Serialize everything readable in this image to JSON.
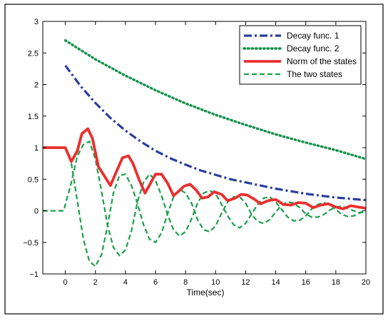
{
  "chart_data": {
    "type": "line",
    "title": "",
    "xlabel": "Time(sec)",
    "ylabel": "",
    "xlim": [
      -1.5,
      20
    ],
    "ylim": [
      -1,
      3
    ],
    "x_ticks": [
      "0",
      "2",
      "4",
      "6",
      "8",
      "10",
      "12",
      "14",
      "16",
      "18",
      "20"
    ],
    "y_ticks": [
      "−1",
      "−0.5",
      "0",
      "0.5",
      "1",
      "1.5",
      "2",
      "2.5",
      "3"
    ],
    "grid": false,
    "legend_position": "top-right",
    "series": [
      {
        "name": "Decay func. 1",
        "color": "#2b3d9e",
        "style": "dashdot",
        "x": [
          0,
          1,
          2,
          3,
          4,
          5,
          6,
          7,
          8,
          9,
          10,
          11,
          12,
          13,
          14,
          15,
          16,
          17,
          18,
          19,
          20
        ],
        "y": [
          2.3,
          1.98,
          1.71,
          1.47,
          1.27,
          1.1,
          0.95,
          0.83,
          0.73,
          0.64,
          0.57,
          0.5,
          0.45,
          0.4,
          0.35,
          0.31,
          0.27,
          0.24,
          0.21,
          0.19,
          0.17
        ]
      },
      {
        "name": "Decay func. 2",
        "color": "#13914a",
        "style": "dotted",
        "x": [
          0,
          2,
          4,
          6,
          8,
          10,
          12,
          14,
          16,
          18,
          20
        ],
        "y": [
          2.7,
          2.4,
          2.14,
          1.91,
          1.7,
          1.52,
          1.36,
          1.21,
          1.08,
          0.96,
          0.82
        ]
      },
      {
        "name": "Norm of the states",
        "color": "#e8302f",
        "style": "solid",
        "x": [
          -1.5,
          0,
          0.4,
          0.8,
          1.1,
          1.5,
          1.8,
          2.2,
          2.6,
          3.0,
          3.4,
          3.8,
          4.2,
          4.5,
          4.9,
          5.3,
          5.7,
          6.0,
          6.4,
          6.8,
          7.2,
          7.5,
          7.9,
          8.3,
          8.7,
          9.1,
          9.5,
          9.9,
          10.4,
          10.8,
          11.3,
          11.7,
          12.1,
          12.6,
          13.0,
          13.5,
          14.0,
          14.5,
          15.0,
          15.5,
          16.0,
          16.5,
          17.0,
          17.5,
          18.0,
          18.5,
          19.0,
          19.5,
          20.0
        ],
        "y": [
          1.0,
          1.0,
          0.78,
          0.95,
          1.22,
          1.3,
          1.15,
          0.7,
          0.55,
          0.4,
          0.62,
          0.84,
          0.87,
          0.75,
          0.5,
          0.28,
          0.45,
          0.58,
          0.58,
          0.44,
          0.24,
          0.3,
          0.39,
          0.42,
          0.33,
          0.2,
          0.22,
          0.3,
          0.26,
          0.16,
          0.2,
          0.26,
          0.25,
          0.18,
          0.11,
          0.16,
          0.18,
          0.1,
          0.09,
          0.13,
          0.12,
          0.05,
          0.09,
          0.11,
          0.06,
          0.03,
          0.08,
          0.06,
          0.04
        ]
      },
      {
        "name": "The two states",
        "color": "#1aa04b",
        "style": "dashed",
        "x": [
          -1.5,
          -0.1,
          0,
          0.4,
          0.8,
          1.2,
          1.6,
          2.0,
          2.4,
          2.8,
          3.2,
          3.6,
          4.0,
          4.4,
          4.8,
          5.2,
          5.6,
          6.0,
          6.4,
          6.8,
          7.2,
          7.6,
          8.0,
          8.4,
          8.8,
          9.2,
          9.6,
          10.0,
          10.4,
          10.8,
          11.2,
          11.6,
          12.0,
          12.4,
          12.8,
          13.2,
          13.6,
          14.0,
          14.4,
          14.8,
          15.2,
          15.6,
          16.0,
          16.4,
          16.8,
          17.2,
          17.6,
          18.0,
          18.4,
          18.8,
          19.2,
          19.6,
          20.0
        ],
        "y": [
          0,
          0,
          0.1,
          0.45,
          0.87,
          1.05,
          1.1,
          0.82,
          0.32,
          -0.22,
          -0.58,
          -0.71,
          -0.62,
          -0.32,
          0.14,
          0.45,
          0.58,
          0.48,
          0.24,
          -0.06,
          -0.3,
          -0.4,
          -0.33,
          -0.13,
          0.12,
          0.28,
          0.32,
          0.27,
          0.1,
          -0.08,
          -0.22,
          -0.27,
          -0.2,
          -0.05,
          0.1,
          0.2,
          0.22,
          0.14,
          0.02,
          -0.1,
          -0.16,
          -0.15,
          -0.08,
          0.03,
          0.1,
          0.13,
          0.1,
          0.02,
          -0.06,
          -0.09,
          -0.08,
          -0.03,
          0.02
        ]
      },
      {
        "name": "The two states",
        "color": "#1aa04b",
        "style": "dashed",
        "show_in_legend": false,
        "x": [
          -1.5,
          0,
          0.4,
          0.8,
          1.2,
          1.6,
          2.0,
          2.4,
          2.8,
          3.2,
          3.6,
          4.0,
          4.4,
          4.8,
          5.2,
          5.6,
          6.0,
          6.4,
          6.8,
          7.2,
          7.6,
          8.0,
          8.4,
          8.8,
          9.2,
          9.6,
          10.0,
          10.4,
          10.8,
          11.2,
          11.6,
          12.0,
          12.4,
          12.8,
          13.2,
          13.6,
          14.0,
          14.4,
          14.8,
          15.2,
          15.6,
          16.0,
          16.4,
          16.8,
          17.2,
          17.6,
          18.0,
          18.4,
          18.8,
          19.2,
          19.6,
          20.0
        ],
        "y": [
          1.0,
          1.0,
          0.75,
          0.15,
          -0.45,
          -0.8,
          -0.88,
          -0.7,
          -0.25,
          0.28,
          0.56,
          0.58,
          0.4,
          0.12,
          -0.22,
          -0.45,
          -0.5,
          -0.35,
          -0.05,
          0.22,
          0.34,
          0.28,
          0.12,
          -0.14,
          -0.3,
          -0.33,
          -0.24,
          -0.04,
          0.14,
          0.22,
          0.22,
          0.12,
          -0.06,
          -0.17,
          -0.2,
          -0.14,
          -0.02,
          0.09,
          0.14,
          0.12,
          0.05,
          -0.05,
          -0.1,
          -0.1,
          -0.06,
          0.01,
          0.06,
          0.07,
          0.04,
          0.0,
          -0.03,
          -0.02
        ]
      }
    ]
  }
}
